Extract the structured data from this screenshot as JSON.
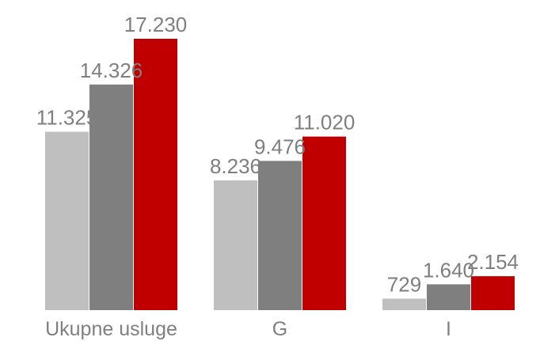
{
  "chart_data": {
    "type": "bar",
    "categories": [
      "Ukupne usluge",
      "G",
      "I"
    ],
    "series": [
      {
        "values": [
          11325,
          8236,
          729
        ],
        "labels": [
          "11.325",
          "8.236",
          "729"
        ]
      },
      {
        "values": [
          14326,
          9476,
          1640
        ],
        "labels": [
          "14.326",
          "9.476",
          "1.640"
        ]
      },
      {
        "values": [
          17230,
          11020,
          2154
        ],
        "labels": [
          "17.230",
          "11.020",
          "2.154"
        ]
      }
    ],
    "colors": [
      "#bfbfbf",
      "#7f7f7f",
      "#c00000"
    ],
    "title": "",
    "xlabel": "",
    "ylabel": "",
    "ylim": [
      0,
      17230
    ],
    "grid": false,
    "legend": "none"
  }
}
